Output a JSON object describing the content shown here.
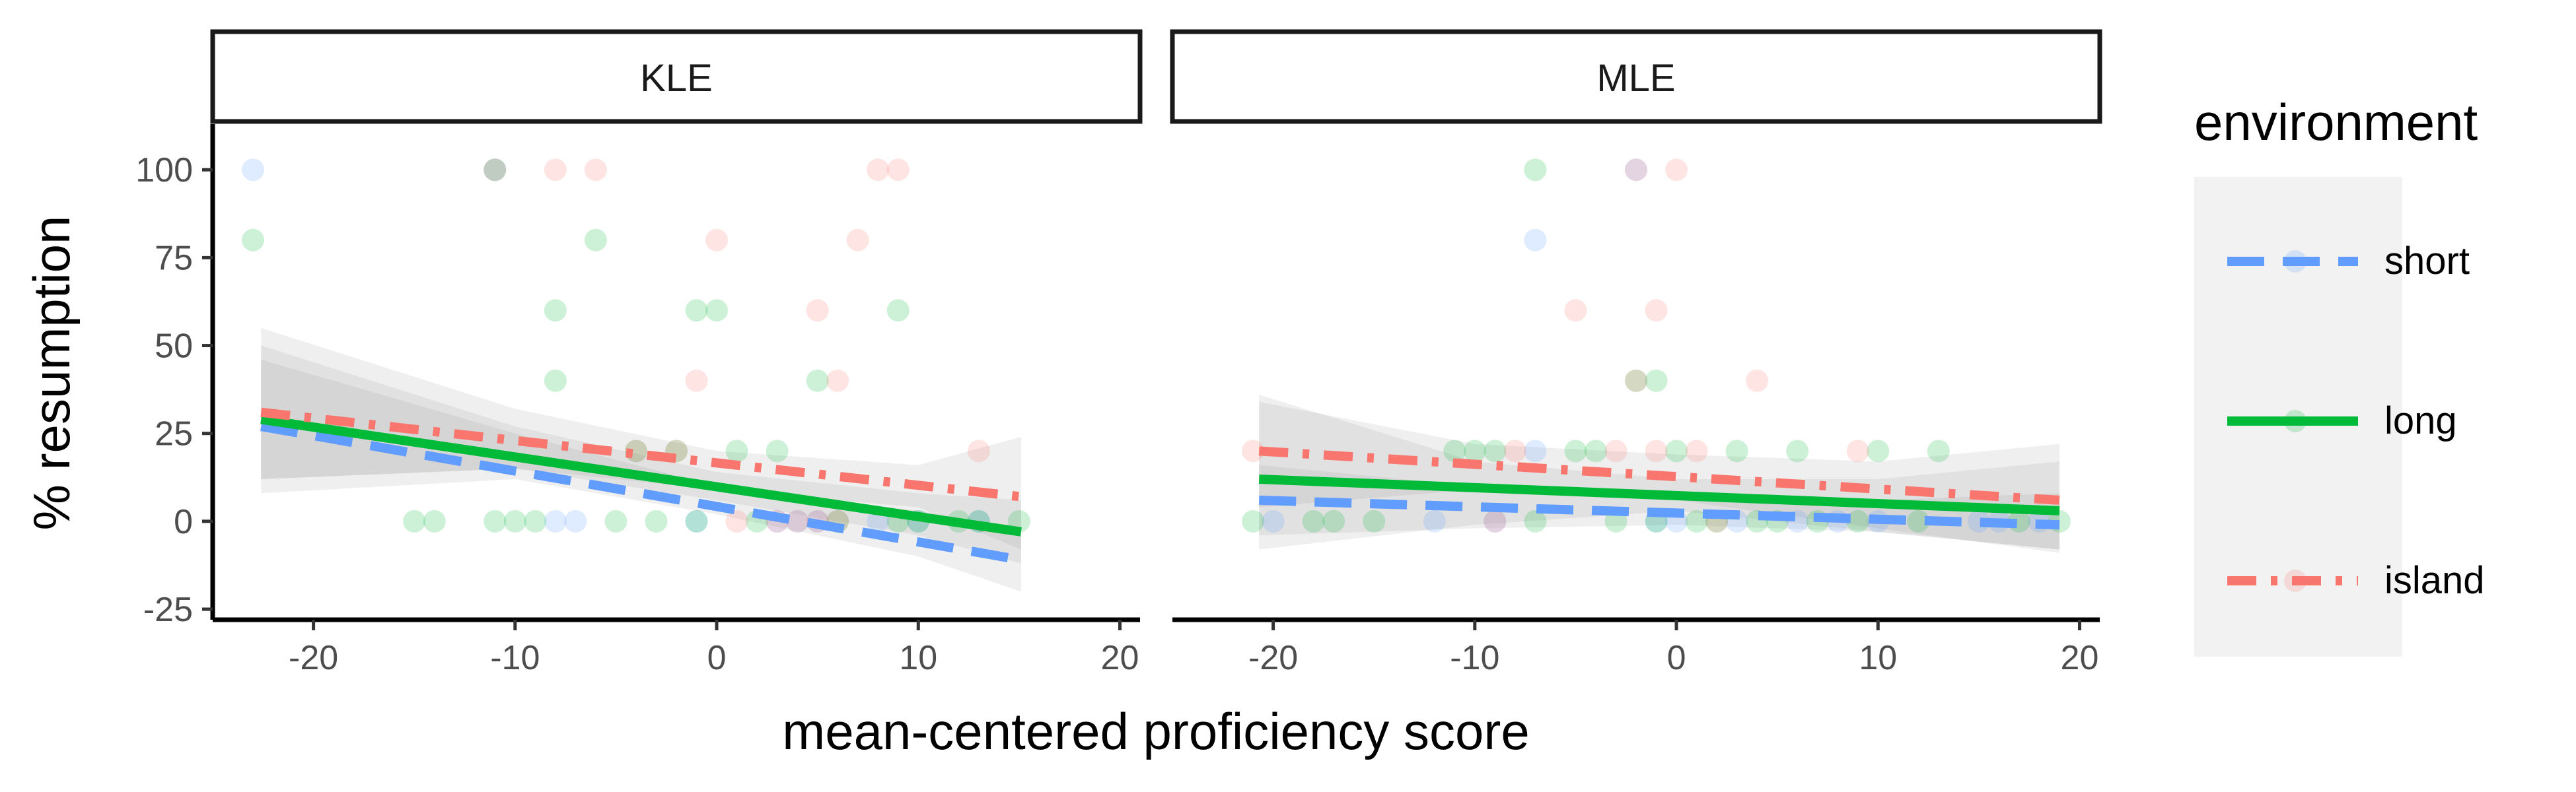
{
  "chart_data": {
    "type": "scatter",
    "xlabel": "mean-centered proficiency score",
    "ylabel": "% resumption",
    "xlim": [
      -25,
      21
    ],
    "ylim": [
      -28,
      113
    ],
    "x_ticks": [
      -20,
      -10,
      0,
      10,
      20
    ],
    "y_ticks": [
      -25,
      0,
      25,
      50,
      75,
      100
    ],
    "x_tick_labels": [
      "-20",
      "-10",
      "0",
      "10",
      "20"
    ],
    "y_tick_labels": [
      "-25",
      "0",
      "25",
      "50",
      "75",
      "100"
    ],
    "grid": false,
    "legend": {
      "title": "environment",
      "position": "right",
      "items": [
        "short",
        "long",
        "island"
      ]
    },
    "colors": {
      "short": "#619CFF",
      "long": "#00BA38",
      "island": "#F8766D",
      "ribbon": "#999999",
      "legend_bg": "#f2f2f2"
    },
    "panels": [
      {
        "label": "KLE",
        "points": {
          "short": [
            [
              -23,
              100
            ],
            [
              -8,
              0
            ],
            [
              -7,
              0
            ],
            [
              3,
              0
            ],
            [
              4,
              0
            ],
            [
              5,
              0
            ],
            [
              8,
              0
            ],
            [
              10,
              0
            ],
            [
              13,
              0
            ],
            [
              -1,
              0
            ],
            [
              -11,
              100
            ]
          ],
          "long": [
            [
              -23,
              80
            ],
            [
              -15,
              0
            ],
            [
              -14,
              0
            ],
            [
              -11,
              0
            ],
            [
              -10,
              0
            ],
            [
              -9,
              0
            ],
            [
              -8,
              60
            ],
            [
              -8,
              40
            ],
            [
              -6,
              80
            ],
            [
              -5,
              0
            ],
            [
              -4,
              20
            ],
            [
              -3,
              0
            ],
            [
              -2,
              20
            ],
            [
              -1,
              0
            ],
            [
              -1,
              60
            ],
            [
              0,
              60
            ],
            [
              1,
              20
            ],
            [
              2,
              0
            ],
            [
              3,
              20
            ],
            [
              5,
              40
            ],
            [
              6,
              0
            ],
            [
              9,
              60
            ],
            [
              9,
              0
            ],
            [
              10,
              0
            ],
            [
              12,
              0
            ],
            [
              13,
              0
            ],
            [
              15,
              0
            ],
            [
              -11,
              100
            ]
          ],
          "island": [
            [
              -8,
              100
            ],
            [
              -6,
              100
            ],
            [
              0,
              80
            ],
            [
              -1,
              40
            ],
            [
              5,
              60
            ],
            [
              6,
              40
            ],
            [
              7,
              80
            ],
            [
              8,
              100
            ],
            [
              9,
              100
            ],
            [
              13,
              20
            ],
            [
              -4,
              20
            ],
            [
              -2,
              20
            ],
            [
              1,
              0
            ],
            [
              3,
              0
            ],
            [
              4,
              0
            ],
            [
              5,
              0
            ],
            [
              6,
              0
            ],
            [
              -11,
              100
            ]
          ]
        },
        "fits": {
          "x": [
            -22.6,
            15.1
          ],
          "short": [
            27,
            -11
          ],
          "long": [
            29,
            -3
          ],
          "island": [
            31,
            7
          ]
        },
        "ribbons": {
          "short": {
            "x": [
              -22.6,
              -10,
              0,
              10,
              15.1
            ],
            "lower": [
              8,
              12,
              2,
              -10,
              -20
            ],
            "upper": [
              46,
              25,
              10,
              3,
              -2
            ]
          },
          "long": {
            "x": [
              -22.6,
              -10,
              0,
              10,
              15.1
            ],
            "lower": [
              12,
              15,
              6,
              -4,
              -12
            ],
            "upper": [
              50,
              27,
              14,
              8,
              6
            ]
          },
          "island": {
            "x": [
              -22.6,
              -10,
              0,
              10,
              15.1
            ],
            "lower": [
              12,
              15,
              9,
              4,
              -8
            ],
            "upper": [
              55,
              32,
              20,
              16,
              24
            ]
          }
        }
      },
      {
        "label": "MLE",
        "points": {
          "short": [
            [
              -20,
              0
            ],
            [
              -12,
              0
            ],
            [
              -9,
              0
            ],
            [
              -7,
              20
            ],
            [
              -7,
              80
            ],
            [
              -2,
              100
            ],
            [
              -1,
              0
            ],
            [
              0,
              0
            ],
            [
              3,
              0
            ],
            [
              6,
              0
            ],
            [
              8,
              0
            ],
            [
              10,
              0
            ],
            [
              15,
              0
            ],
            [
              16,
              0
            ],
            [
              18,
              0
            ]
          ],
          "long": [
            [
              -21,
              0
            ],
            [
              -18,
              0
            ],
            [
              -17,
              0
            ],
            [
              -15,
              0
            ],
            [
              -11,
              20
            ],
            [
              -10,
              20
            ],
            [
              -9,
              20
            ],
            [
              -7,
              100
            ],
            [
              -7,
              0
            ],
            [
              -5,
              20
            ],
            [
              -4,
              20
            ],
            [
              -3,
              0
            ],
            [
              -2,
              40
            ],
            [
              -1,
              40
            ],
            [
              -1,
              0
            ],
            [
              0,
              20
            ],
            [
              1,
              0
            ],
            [
              2,
              0
            ],
            [
              3,
              20
            ],
            [
              4,
              0
            ],
            [
              5,
              0
            ],
            [
              6,
              20
            ],
            [
              7,
              0
            ],
            [
              9,
              0
            ],
            [
              10,
              20
            ],
            [
              12,
              0
            ],
            [
              13,
              20
            ],
            [
              17,
              0
            ],
            [
              19,
              0
            ]
          ],
          "island": [
            [
              -21,
              20
            ],
            [
              -8,
              20
            ],
            [
              -5,
              60
            ],
            [
              -2,
              100
            ],
            [
              -1,
              60
            ],
            [
              0,
              100
            ],
            [
              -2,
              40
            ],
            [
              1,
              20
            ],
            [
              2,
              0
            ],
            [
              4,
              40
            ],
            [
              9,
              20
            ],
            [
              -9,
              0
            ],
            [
              -3,
              20
            ],
            [
              -1,
              20
            ]
          ]
        },
        "fits": {
          "x": [
            -20.7,
            19
          ],
          "short": [
            6,
            -1
          ],
          "long": [
            12,
            3
          ],
          "island": [
            20,
            6
          ]
        },
        "ribbons": {
          "short": {
            "x": [
              -20.7,
              -10,
              0,
              10,
              19
            ],
            "lower": [
              -4,
              -2,
              -1,
              -3,
              -8
            ],
            "upper": [
              16,
              10,
              6,
              6,
              8
            ]
          },
          "long": {
            "x": [
              -20.7,
              -10,
              0,
              10,
              19
            ],
            "lower": [
              -8,
              -1,
              3,
              -3,
              -8
            ],
            "upper": [
              36,
              17,
              12,
              12,
              17
            ]
          },
          "island": {
            "x": [
              -20.7,
              -10,
              0,
              10,
              19
            ],
            "lower": [
              4,
              9,
              6,
              -2,
              -9
            ],
            "upper": [
              34,
              22,
              19,
              17,
              22
            ]
          }
        }
      }
    ]
  }
}
